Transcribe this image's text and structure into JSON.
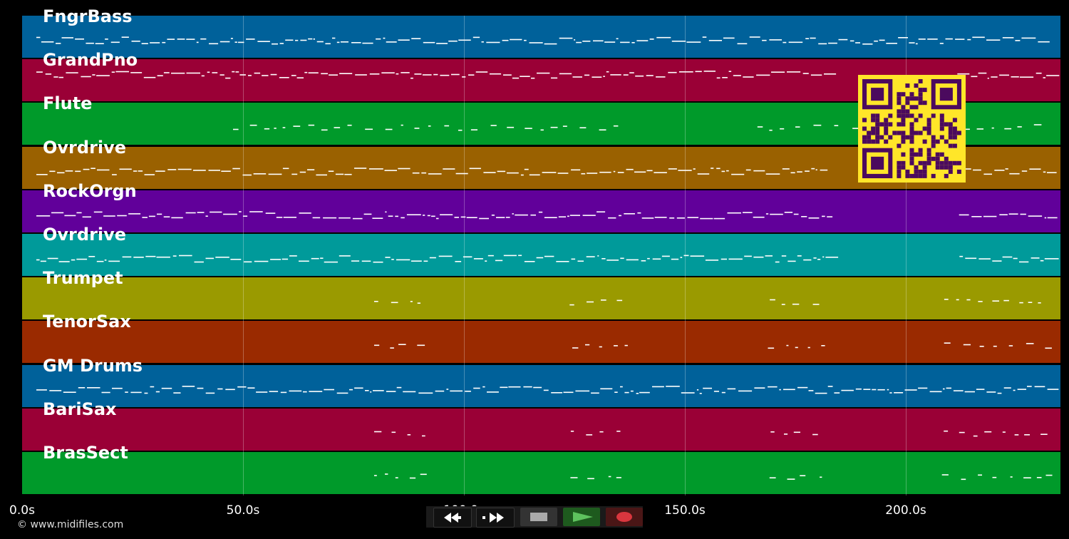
{
  "tracks": [
    {
      "name": "FngrBass",
      "color": "#00619a"
    },
    {
      "name": "GrandPno",
      "color": "#9a0036"
    },
    {
      "name": "Flute",
      "color": "#009a2a"
    },
    {
      "name": "Ovrdrive",
      "color": "#9a6100"
    },
    {
      "name": "RockOrgn",
      "color": "#61009a"
    },
    {
      "name": "Ovrdrive",
      "color": "#009a9a"
    },
    {
      "name": "Trumpet",
      "color": "#9a9a00"
    },
    {
      "name": "TenorSax",
      "color": "#9a2a00"
    },
    {
      "name": "GM Drums",
      "color": "#00619a"
    },
    {
      "name": "BariSax",
      "color": "#9a0036"
    },
    {
      "name": "BrasSect",
      "color": "#009a2a"
    }
  ],
  "timeline": {
    "ticks": [
      "0.0s",
      "50.0s",
      "100.0s",
      "150.0s",
      "200.0s"
    ],
    "tick_seconds": [
      0,
      50,
      100,
      150,
      200
    ],
    "duration_seconds": 235
  },
  "transport": {
    "rewind_icon": "rewind-icon",
    "forward_icon": "fast-forward-icon",
    "stop_icon": "stop-icon",
    "play_icon": "play-icon",
    "record_icon": "record-icon",
    "play_color": "#5ec25e",
    "record_color": "#d9363e"
  },
  "footer": {
    "copyright": "© www.midifiles.com"
  },
  "qr_code": {
    "colors": [
      "#ffe629",
      "#4b0a5e"
    ]
  }
}
